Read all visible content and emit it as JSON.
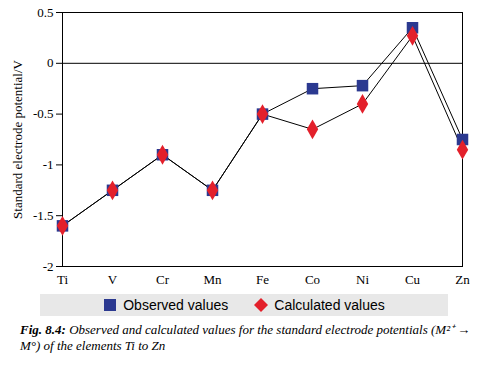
{
  "chart_data": {
    "type": "line",
    "title": "Observed and calculated values for the standard electrode potentials (M²⁺ → M°) of the elements Ti to Zn",
    "figure_label": "Fig. 8.4:",
    "y_label": "Standard electrode potential/V",
    "categories": [
      "Ti",
      "V",
      "Cr",
      "Mn",
      "Fe",
      "Co",
      "Ni",
      "Cu",
      "Zn"
    ],
    "series": [
      {
        "name": "Observed values",
        "color": "#2b3990",
        "marker": "square",
        "values": [
          -1.6,
          -1.25,
          -0.9,
          -1.25,
          -0.5,
          -0.25,
          -0.22,
          0.35,
          -0.75
        ]
      },
      {
        "name": "Calculated values",
        "color": "#e3202b",
        "marker": "diamond",
        "values": [
          -1.6,
          -1.25,
          -0.9,
          -1.25,
          -0.5,
          -0.65,
          -0.4,
          0.27,
          -0.85
        ]
      }
    ],
    "ylim": [
      -2,
      0.5
    ],
    "yticks": [
      -2,
      -1.5,
      -1,
      -0.5,
      0,
      0.5
    ],
    "hline": 0,
    "grid": false,
    "legend": "bottom"
  }
}
